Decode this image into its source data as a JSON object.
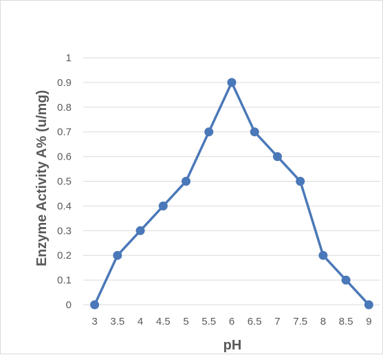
{
  "chart_data": {
    "type": "line",
    "title": "",
    "xlabel": "pH",
    "ylabel": "Enzyme Activity A% (u/mg)",
    "categories": [
      "3",
      "3.5",
      "4",
      "4.5",
      "5",
      "5.5",
      "6",
      "6.5",
      "7",
      "7.5",
      "8",
      "8.5",
      "9"
    ],
    "y_ticks": [
      "0",
      "0.1",
      "0.2",
      "0.3",
      "0.4",
      "0.5",
      "0.6",
      "0.7",
      "0.8",
      "0.9",
      "1"
    ],
    "ylim": [
      0,
      1
    ],
    "grid": true,
    "legend": "none",
    "series": [
      {
        "values": [
          0,
          0.2,
          0.3,
          0.4,
          0.5,
          0.7,
          0.9,
          0.7,
          0.6,
          0.5,
          0.2,
          0.1,
          0
        ],
        "color": "#4a78b8"
      }
    ],
    "colors": {
      "gridline": "#d9d9d9",
      "text": "#595959"
    }
  }
}
